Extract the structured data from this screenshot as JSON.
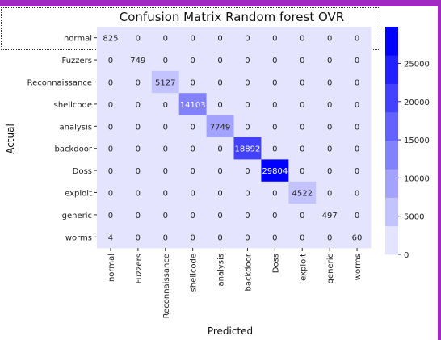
{
  "colors": {
    "topbar": "#a128c0",
    "scrollbar": "#a128c0",
    "cell_low": "#e4e4ff",
    "cell_high": "#0000ff",
    "text_dark": "#222222",
    "text_light": "#ffffff"
  },
  "chart_data": {
    "type": "heatmap",
    "title": "Confusion Matrix Random forest OVR",
    "xlabel": "Predicted",
    "ylabel": "Actual",
    "row_labels": [
      "normal",
      "Fuzzers",
      "Reconnaissance",
      "shellcode",
      "analysis",
      "backdoor",
      "Doss",
      "exploit",
      "generic",
      "worms"
    ],
    "col_labels": [
      "normal",
      "Fuzzers",
      "Reconnaissance",
      "shellcode",
      "analysis",
      "backdoor",
      "Doss",
      "exploit",
      "generic",
      "worms"
    ],
    "values": [
      [
        825,
        0,
        0,
        0,
        0,
        0,
        0,
        0,
        0,
        0
      ],
      [
        0,
        749,
        0,
        0,
        0,
        0,
        0,
        0,
        0,
        0
      ],
      [
        0,
        0,
        5127,
        0,
        0,
        0,
        0,
        0,
        0,
        0
      ],
      [
        0,
        0,
        0,
        14103,
        0,
        0,
        0,
        0,
        0,
        0
      ],
      [
        0,
        0,
        0,
        0,
        7749,
        0,
        0,
        0,
        0,
        0
      ],
      [
        0,
        0,
        0,
        0,
        0,
        18892,
        0,
        0,
        0,
        0
      ],
      [
        0,
        0,
        0,
        0,
        0,
        0,
        29804,
        0,
        0,
        0
      ],
      [
        0,
        0,
        0,
        0,
        0,
        0,
        0,
        4522,
        0,
        0
      ],
      [
        0,
        0,
        0,
        0,
        0,
        0,
        0,
        0,
        497,
        0
      ],
      [
        4,
        0,
        0,
        0,
        0,
        0,
        0,
        0,
        0,
        60
      ]
    ],
    "colorbar": {
      "min": 0,
      "max": 29804,
      "levels": 8,
      "ticks": [
        0,
        5000,
        10000,
        15000,
        20000,
        25000
      ]
    }
  }
}
